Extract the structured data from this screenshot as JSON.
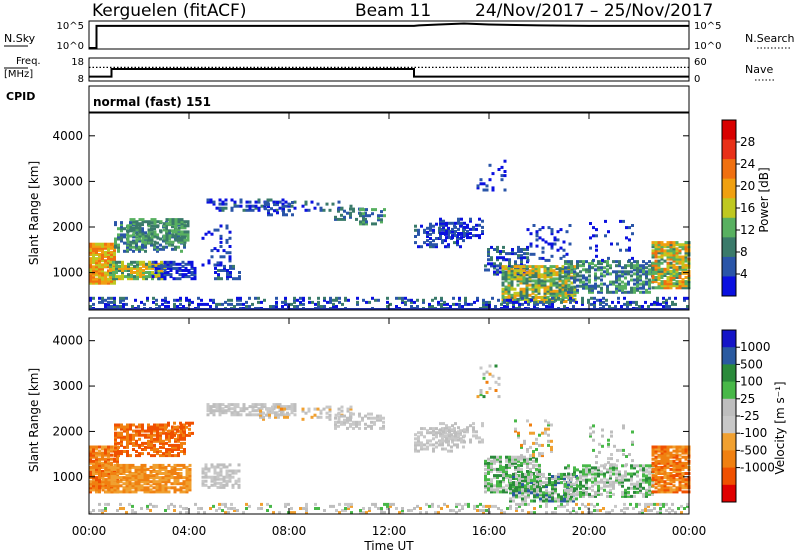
{
  "header": {
    "station": "Kerguelen (fitACF)",
    "beam": "Beam 11",
    "dates": "24/Nov/2017 – 25/Nov/2017"
  },
  "colors": {
    "power": [
      "#0a10e0",
      "#2a55a8",
      "#3a7a6a",
      "#58b060",
      "#bfc820",
      "#f0a010",
      "#f07010",
      "#e83018",
      "#d80000"
    ],
    "velocity": [
      "#e00000",
      "#f05000",
      "#f08010",
      "#f0a030",
      "#c8c8c8",
      "#bebebe",
      "#48b848",
      "#2a8a3a",
      "#2a5aa0",
      "#1515c8"
    ],
    "gray": "#c0c0c0"
  },
  "chart_data": [
    {
      "type": "line",
      "name": "nsky-nsearch",
      "labels": {
        "left": "N.Sky",
        "right": "N.Search",
        "left_ticks": [
          "10^5",
          "10^0"
        ],
        "right_ticks": [
          "10^5",
          "10^0"
        ]
      },
      "x_range_hours": [
        0,
        24
      ],
      "series": [
        {
          "x": [
            0,
            0.3,
            0.3,
            5,
            10,
            13,
            13.2,
            14,
            15,
            16,
            18,
            20,
            22,
            24
          ],
          "y": [
            0,
            0,
            4.6,
            4.6,
            4.6,
            4.6,
            4.7,
            4.9,
            5.1,
            4.9,
            4.7,
            4.6,
            4.6,
            4.6
          ]
        }
      ]
    },
    {
      "type": "line",
      "name": "freq-nave",
      "labels": {
        "left_top": "Freq.",
        "left_bottom": "[MHz]",
        "right": "Nave",
        "left_ticks": [
          "18",
          "8"
        ],
        "right_ticks": [
          "60",
          "0"
        ]
      },
      "left_range": [
        8,
        18
      ],
      "x_range_hours": [
        0,
        24
      ],
      "freq": {
        "x": [
          0,
          0.9,
          0.9,
          13,
          13,
          24
        ],
        "y": [
          9.7,
          9.7,
          13.5,
          13.5,
          9.7,
          9.7
        ]
      },
      "nave_dotted_level": 14.3,
      "cpid_label": "CPID",
      "cpid_text": "normal (fast) 151"
    },
    {
      "type": "heatmap",
      "name": "power",
      "ylabel": "Slant Range [km]",
      "y_range": [
        180,
        4500
      ],
      "y_ticks": [
        1000,
        2000,
        3000,
        4000
      ],
      "x_range_hours": [
        0,
        24
      ],
      "colorbar": {
        "label": "Power [dB]",
        "ticks": [
          4,
          8,
          12,
          16,
          20,
          24,
          28
        ],
        "range": [
          0,
          32
        ]
      },
      "blobs": [
        {
          "h0": 0,
          "h1": 1.0,
          "r0": 800,
          "r1": 1700,
          "v0": 20,
          "v1": 32,
          "d": 0.9
        },
        {
          "h0": 0.8,
          "h1": 3.0,
          "r0": 900,
          "r1": 1300,
          "v0": 14,
          "v1": 28,
          "d": 0.8
        },
        {
          "h0": 1.0,
          "h1": 3.8,
          "r0": 1500,
          "r1": 2150,
          "v0": 8,
          "v1": 20,
          "d": 0.5
        },
        {
          "h0": 1.5,
          "h1": 4.0,
          "r0": 1700,
          "r1": 2200,
          "v0": 12,
          "v1": 20,
          "d": 0.5
        },
        {
          "h0": 2.5,
          "h1": 4.2,
          "r0": 900,
          "r1": 1300,
          "v0": 4,
          "v1": 12,
          "d": 0.6
        },
        {
          "h0": 4.5,
          "h1": 5.7,
          "r0": 1200,
          "r1": 2100,
          "v0": 4,
          "v1": 12,
          "d": 0.2
        },
        {
          "h0": 5.0,
          "h1": 6.0,
          "r0": 900,
          "r1": 1200,
          "v0": 4,
          "v1": 14,
          "d": 0.5
        },
        {
          "h0": 4.7,
          "h1": 8.2,
          "r0": 2400,
          "r1": 2650,
          "v0": 4,
          "v1": 14,
          "d": 0.4
        },
        {
          "h0": 7.0,
          "h1": 8.2,
          "r0": 2300,
          "r1": 2600,
          "v0": 4,
          "v1": 12,
          "d": 0.4
        },
        {
          "h0": 8.5,
          "h1": 10.5,
          "r0": 2400,
          "r1": 2600,
          "v0": 4,
          "v1": 14,
          "d": 0.2
        },
        {
          "h0": 9.8,
          "h1": 11.0,
          "r0": 2200,
          "r1": 2450,
          "v0": 8,
          "v1": 16,
          "d": 0.4
        },
        {
          "h0": 10.8,
          "h1": 11.8,
          "r0": 2100,
          "r1": 2450,
          "v0": 8,
          "v1": 20,
          "d": 0.5
        },
        {
          "h0": 13.0,
          "h1": 15.0,
          "r0": 1600,
          "r1": 2100,
          "v0": 4,
          "v1": 14,
          "d": 0.4
        },
        {
          "h0": 14.0,
          "h1": 15.7,
          "r0": 1800,
          "r1": 2250,
          "v0": 4,
          "v1": 12,
          "d": 0.4
        },
        {
          "h0": 15.5,
          "h1": 16.6,
          "r0": 2800,
          "r1": 3500,
          "v0": 4,
          "v1": 12,
          "d": 0.12
        },
        {
          "h0": 15.8,
          "h1": 17.5,
          "r0": 1000,
          "r1": 1600,
          "v0": 4,
          "v1": 16,
          "d": 0.45
        },
        {
          "h0": 16.5,
          "h1": 19.5,
          "r0": 400,
          "r1": 1200,
          "v0": 12,
          "v1": 28,
          "d": 0.75
        },
        {
          "h0": 17.5,
          "h1": 19.2,
          "r0": 1300,
          "r1": 2100,
          "v0": 4,
          "v1": 12,
          "d": 0.15
        },
        {
          "h0": 19.0,
          "h1": 22.5,
          "r0": 600,
          "r1": 1300,
          "v0": 8,
          "v1": 20,
          "d": 0.55
        },
        {
          "h0": 20.0,
          "h1": 21.8,
          "r0": 1300,
          "r1": 2200,
          "v0": 4,
          "v1": 12,
          "d": 0.12
        },
        {
          "h0": 22.5,
          "h1": 24.0,
          "r0": 700,
          "r1": 1700,
          "v0": 14,
          "v1": 30,
          "d": 0.8
        },
        {
          "h0": 0,
          "h1": 24,
          "r0": 200,
          "r1": 480,
          "v0": 4,
          "v1": 16,
          "d": 0.35
        }
      ]
    },
    {
      "type": "heatmap",
      "name": "velocity",
      "ylabel": "Slant Range [km]",
      "y_range": [
        180,
        4500
      ],
      "y_ticks": [
        1000,
        2000,
        3000,
        4000
      ],
      "x_range_hours": [
        0,
        24
      ],
      "xlabel": "Time UT",
      "x_tick_labels": [
        "00:00",
        "04:00",
        "08:00",
        "12:00",
        "16:00",
        "20:00",
        "00:00"
      ],
      "colorbar": {
        "label": "Velocity [m s⁻¹]",
        "ticks": [
          "1000",
          "500",
          "100",
          "25",
          "-25",
          "-100",
          "-500",
          "-1000"
        ]
      },
      "blobs": [
        {
          "h0": 0,
          "h1": 1.2,
          "r0": 700,
          "r1": 1700,
          "c0": 1,
          "c1": 3,
          "d": 0.9
        },
        {
          "h0": 0.5,
          "h1": 4.0,
          "r0": 700,
          "r1": 1300,
          "c0": 2,
          "c1": 3,
          "d": 0.8
        },
        {
          "h0": 1.0,
          "h1": 3.8,
          "r0": 1500,
          "r1": 2200,
          "c0": 1,
          "c1": 2,
          "d": 0.65
        },
        {
          "h0": 3.0,
          "h1": 4.2,
          "r0": 1900,
          "r1": 2250,
          "c0": 1,
          "c1": 2,
          "d": 0.5
        },
        {
          "h0": 4.5,
          "h1": 6.0,
          "r0": 800,
          "r1": 1300,
          "c0": 4,
          "c1": 5,
          "d": 0.6
        },
        {
          "h0": 4.7,
          "h1": 8.2,
          "r0": 2400,
          "r1": 2650,
          "c0": 4,
          "c1": 5,
          "d": 0.6
        },
        {
          "h0": 6.8,
          "h1": 8.0,
          "r0": 2300,
          "r1": 2600,
          "c0": 2,
          "c1": 5,
          "d": 0.4
        },
        {
          "h0": 8.5,
          "h1": 10.5,
          "r0": 2300,
          "r1": 2600,
          "c0": 3,
          "c1": 5,
          "d": 0.3
        },
        {
          "h0": 9.8,
          "h1": 11.8,
          "r0": 2100,
          "r1": 2450,
          "c0": 4,
          "c1": 5,
          "d": 0.5
        },
        {
          "h0": 13.0,
          "h1": 15.0,
          "r0": 1600,
          "r1": 2100,
          "c0": 4,
          "c1": 5,
          "d": 0.5
        },
        {
          "h0": 14.0,
          "h1": 15.7,
          "r0": 1800,
          "r1": 2250,
          "c0": 4,
          "c1": 5,
          "d": 0.4
        },
        {
          "h0": 15.5,
          "h1": 16.6,
          "r0": 2800,
          "r1": 3500,
          "c0": 2,
          "c1": 7,
          "d": 0.15
        },
        {
          "h0": 15.8,
          "h1": 18.0,
          "r0": 700,
          "r1": 1500,
          "c0": 4,
          "c1": 7,
          "d": 0.65
        },
        {
          "h0": 16.8,
          "h1": 19.5,
          "r0": 500,
          "r1": 1100,
          "c0": 4,
          "c1": 8,
          "d": 0.7
        },
        {
          "h0": 17.0,
          "h1": 18.5,
          "r0": 1500,
          "r1": 2300,
          "c0": 2,
          "c1": 6,
          "d": 0.2
        },
        {
          "h0": 19.0,
          "h1": 22.5,
          "r0": 600,
          "r1": 1300,
          "c0": 4,
          "c1": 7,
          "d": 0.55
        },
        {
          "h0": 20.0,
          "h1": 21.8,
          "r0": 1300,
          "r1": 2200,
          "c0": 4,
          "c1": 6,
          "d": 0.12
        },
        {
          "h0": 22.5,
          "h1": 24.0,
          "r0": 700,
          "r1": 1700,
          "c0": 1,
          "c1": 3,
          "d": 0.8
        },
        {
          "h0": 0,
          "h1": 24,
          "r0": 200,
          "r1": 450,
          "c0": 3,
          "c1": 6,
          "d": 0.25
        }
      ]
    }
  ]
}
